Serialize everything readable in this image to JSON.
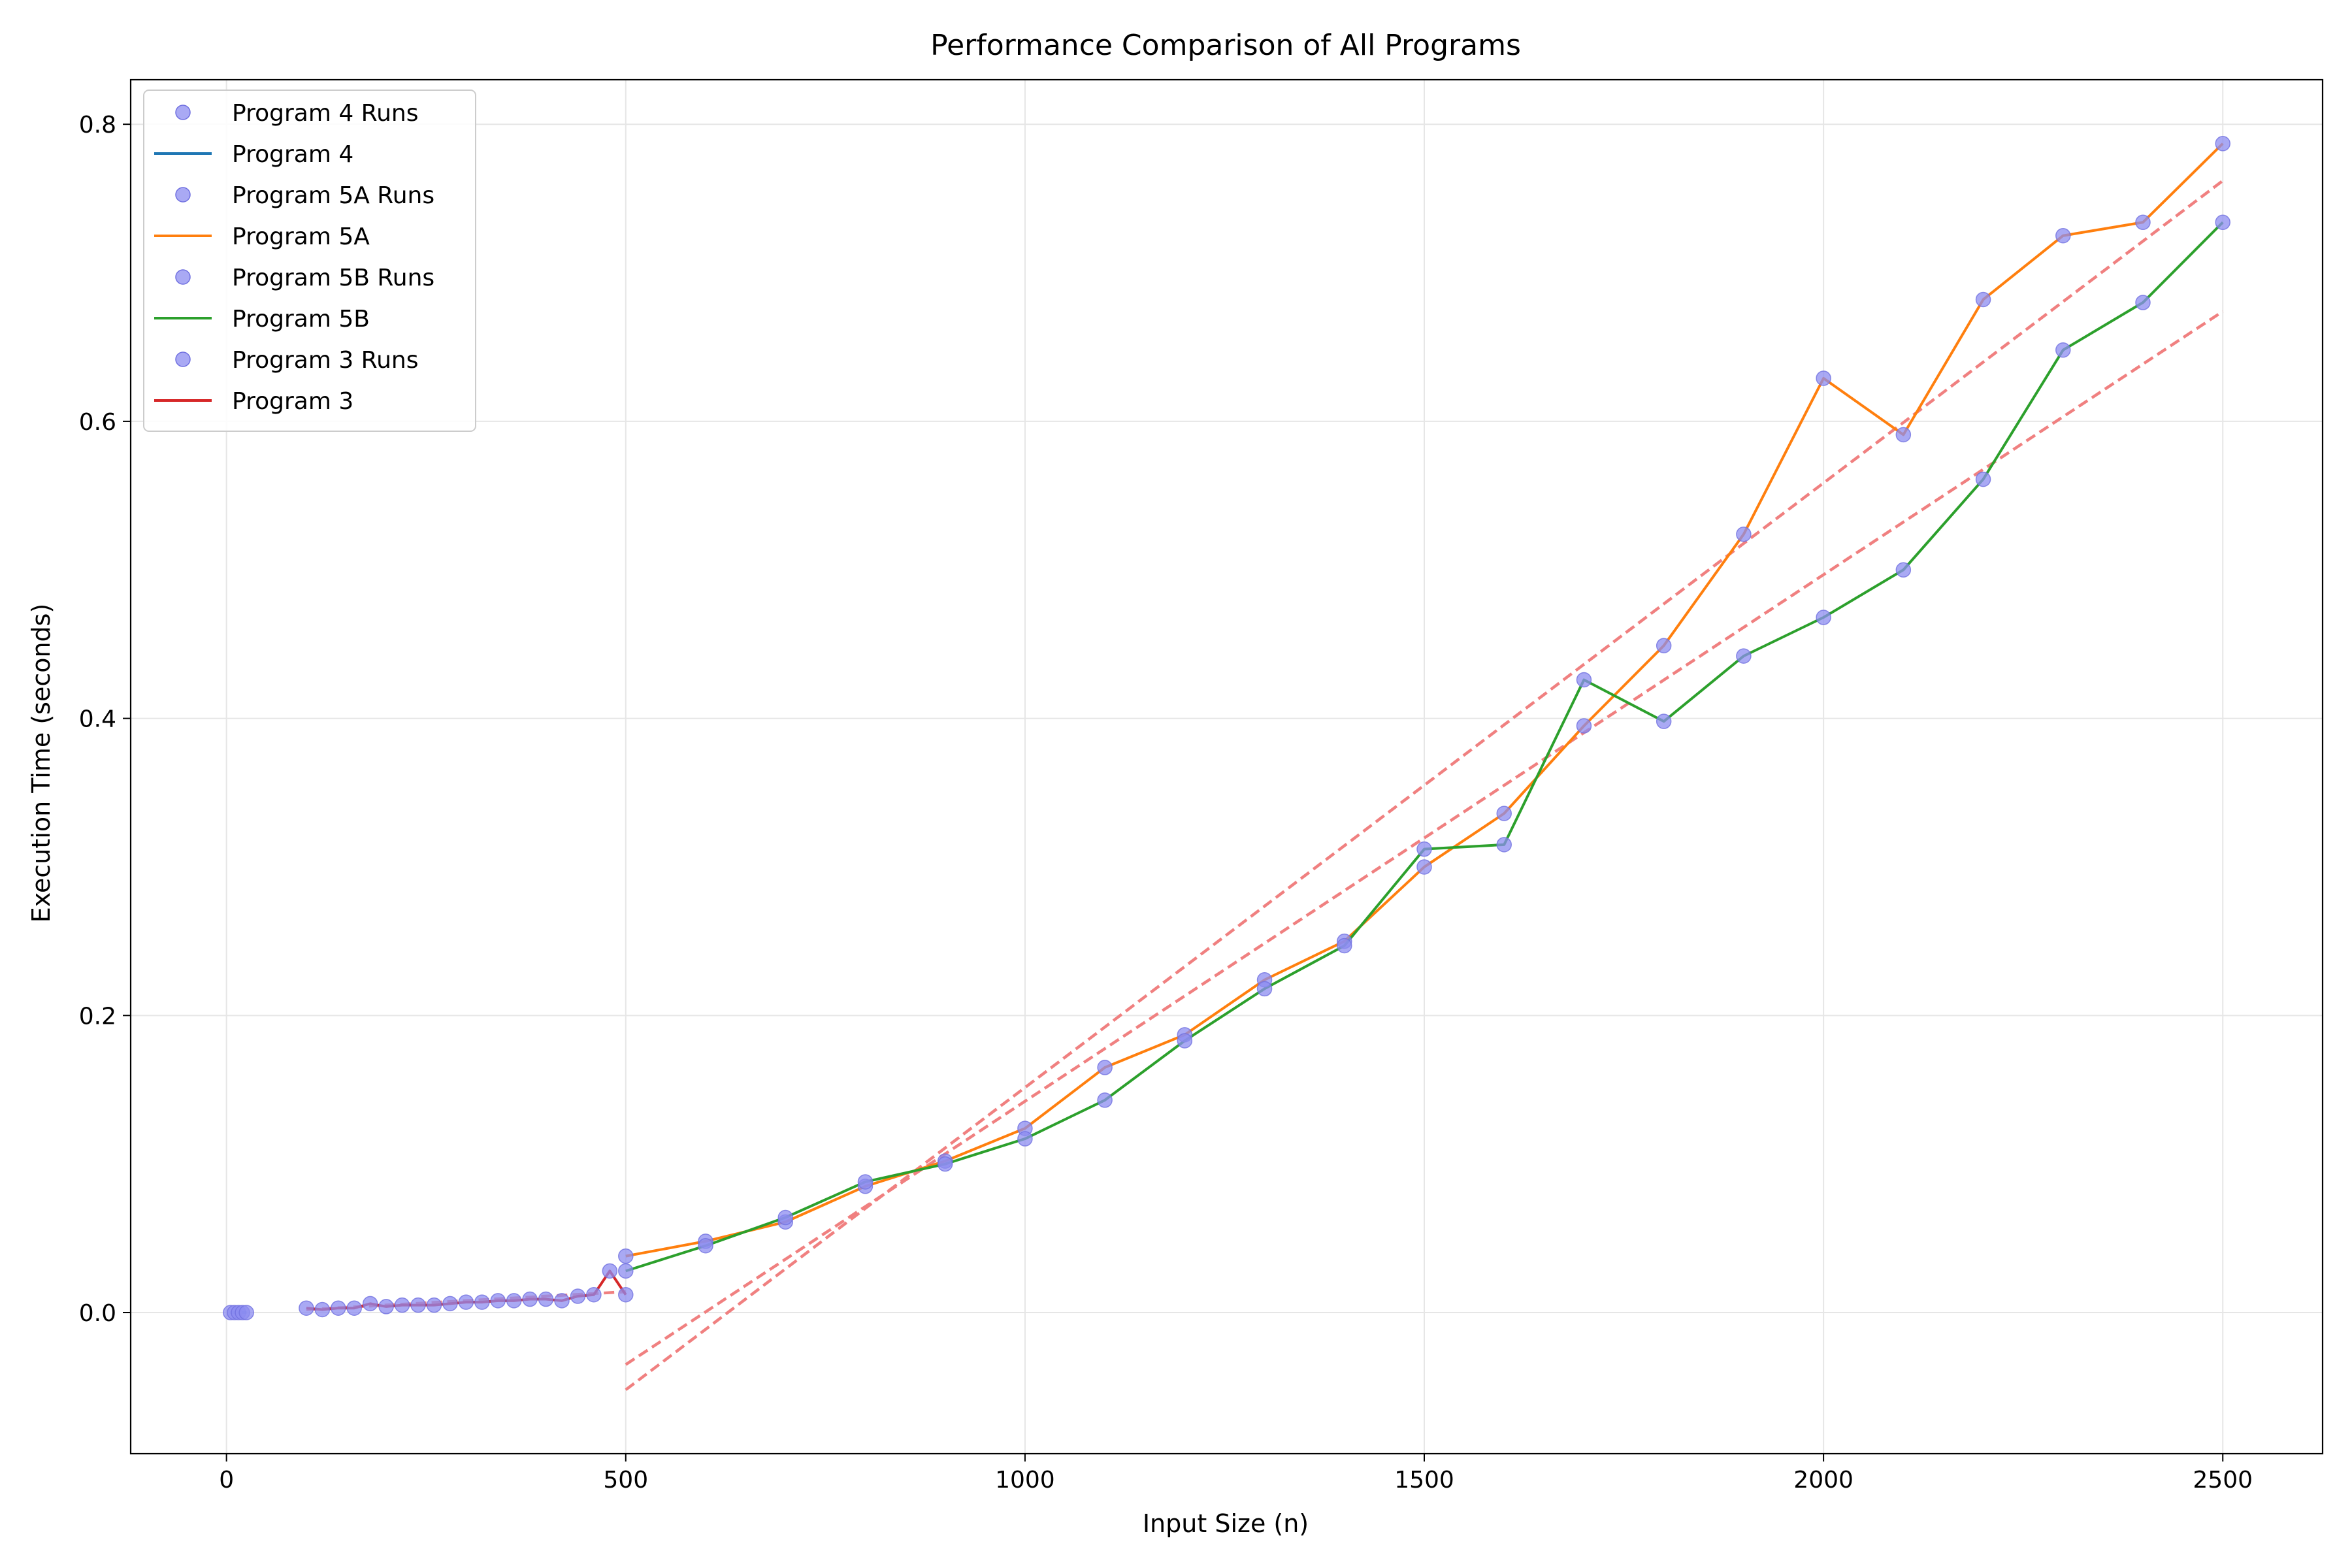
{
  "chart_data": {
    "type": "scatter",
    "title": "Performance Comparison of All Programs",
    "xlabel": "Input Size (n)",
    "ylabel": "Execution Time (seconds)",
    "xlim": [
      -120,
      2625
    ],
    "ylim": [
      -0.095,
      0.83
    ],
    "xticks": [
      0,
      500,
      1000,
      1500,
      2000,
      2500
    ],
    "xtick_labels": [
      "0",
      "500",
      "1000",
      "1500",
      "2000",
      "2500"
    ],
    "yticks": [
      0.0,
      0.2,
      0.4,
      0.6,
      0.8
    ],
    "ytick_labels": [
      "0.0",
      "0.2",
      "0.4",
      "0.6",
      "0.8"
    ],
    "grid": true,
    "legend_position": "top-left",
    "legend": [
      {
        "label": "Program 4 Runs",
        "kind": "marker",
        "color": "#8c8cf0"
      },
      {
        "label": "Program 4",
        "kind": "line",
        "color": "#1f77b4"
      },
      {
        "label": "Program 5A Runs",
        "kind": "marker",
        "color": "#8c8cf0"
      },
      {
        "label": "Program 5A",
        "kind": "line",
        "color": "#ff7f0e"
      },
      {
        "label": "Program 5B Runs",
        "kind": "marker",
        "color": "#8c8cf0"
      },
      {
        "label": "Program 5B",
        "kind": "line",
        "color": "#2ca02c"
      },
      {
        "label": "Program 3 Runs",
        "kind": "marker",
        "color": "#8c8cf0"
      },
      {
        "label": "Program 3",
        "kind": "line",
        "color": "#d62728"
      }
    ],
    "series": [
      {
        "name": "Program 4",
        "color": "#1f77b4",
        "x": [
          5,
          10,
          15,
          20,
          25
        ],
        "y": [
          0.0,
          0.0,
          0.0,
          0.0,
          0.0
        ]
      },
      {
        "name": "Program 5A",
        "color": "#ff7f0e",
        "x": [
          500,
          600,
          700,
          800,
          900,
          1000,
          1100,
          1200,
          1300,
          1400,
          1500,
          1600,
          1700,
          1800,
          1900,
          2000,
          2100,
          2200,
          2300,
          2400,
          2500
        ],
        "y": [
          0.038,
          0.048,
          0.061,
          0.085,
          0.102,
          0.124,
          0.165,
          0.187,
          0.224,
          0.25,
          0.3,
          0.336,
          0.395,
          0.449,
          0.524,
          0.629,
          0.591,
          0.682,
          0.725,
          0.734,
          0.787
        ]
      },
      {
        "name": "Program 5B",
        "color": "#2ca02c",
        "x": [
          500,
          600,
          700,
          800,
          900,
          1000,
          1100,
          1200,
          1300,
          1400,
          1500,
          1600,
          1700,
          1800,
          1900,
          2000,
          2100,
          2200,
          2300,
          2400,
          2500
        ],
        "y": [
          0.028,
          0.045,
          0.064,
          0.088,
          0.1,
          0.117,
          0.143,
          0.183,
          0.218,
          0.247,
          0.312,
          0.315,
          0.426,
          0.398,
          0.442,
          0.468,
          0.5,
          0.561,
          0.648,
          0.68,
          0.734
        ]
      },
      {
        "name": "Program 3",
        "color": "#d62728",
        "x": [
          100,
          120,
          140,
          160,
          180,
          200,
          220,
          240,
          260,
          280,
          300,
          320,
          340,
          360,
          380,
          400,
          420,
          440,
          460,
          480,
          500
        ],
        "y": [
          0.003,
          0.002,
          0.003,
          0.003,
          0.006,
          0.004,
          0.005,
          0.005,
          0.005,
          0.006,
          0.007,
          0.007,
          0.008,
          0.008,
          0.009,
          0.009,
          0.008,
          0.011,
          0.012,
          0.028,
          0.012
        ]
      }
    ],
    "trend_lines": [
      {
        "color": "#f08080",
        "x": [
          500,
          2500
        ],
        "y": [
          -0.052,
          0.762
        ]
      },
      {
        "color": "#f08080",
        "x": [
          500,
          2500
        ],
        "y": [
          -0.035,
          0.674
        ]
      },
      {
        "color": "#f08080",
        "x": [
          100,
          500
        ],
        "y": [
          0.002,
          0.014
        ]
      }
    ],
    "marker_color": "#8c8cf0"
  }
}
